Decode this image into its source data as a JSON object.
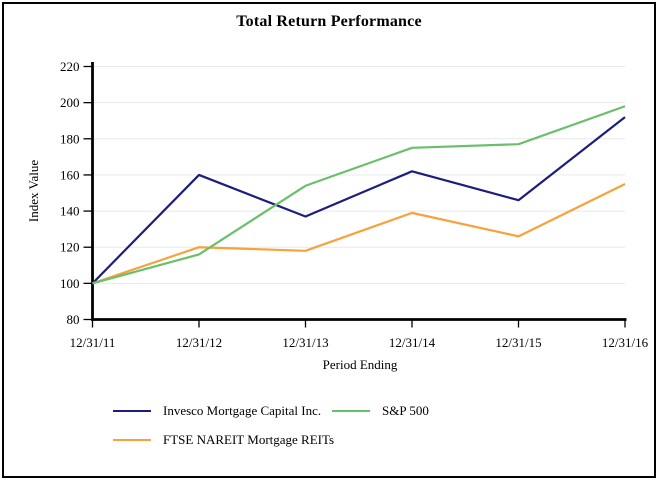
{
  "chart_data": {
    "type": "line",
    "title": "Total Return Performance",
    "xlabel": "Period Ending",
    "ylabel": "Index Value",
    "categories": [
      "12/31/11",
      "12/31/12",
      "12/31/13",
      "12/31/14",
      "12/31/15",
      "12/31/16"
    ],
    "ylim": [
      80,
      220
    ],
    "ytick_step": 20,
    "grid": true,
    "legend_position": "bottom",
    "axis_color": "#000000",
    "grid_color": "#e9e9e9",
    "series": [
      {
        "name": "Invesco Mortgage Capital Inc.",
        "color": "#1d1d7f",
        "values": [
          100,
          160,
          137,
          162,
          146,
          192
        ]
      },
      {
        "name": "S&P 500",
        "color": "#6abf69",
        "values": [
          100,
          116,
          154,
          175,
          177,
          198
        ]
      },
      {
        "name": "FTSE NAREIT Mortgage REITs",
        "color": "#f7a23a",
        "values": [
          100,
          120,
          118,
          139,
          126,
          155
        ]
      }
    ]
  }
}
